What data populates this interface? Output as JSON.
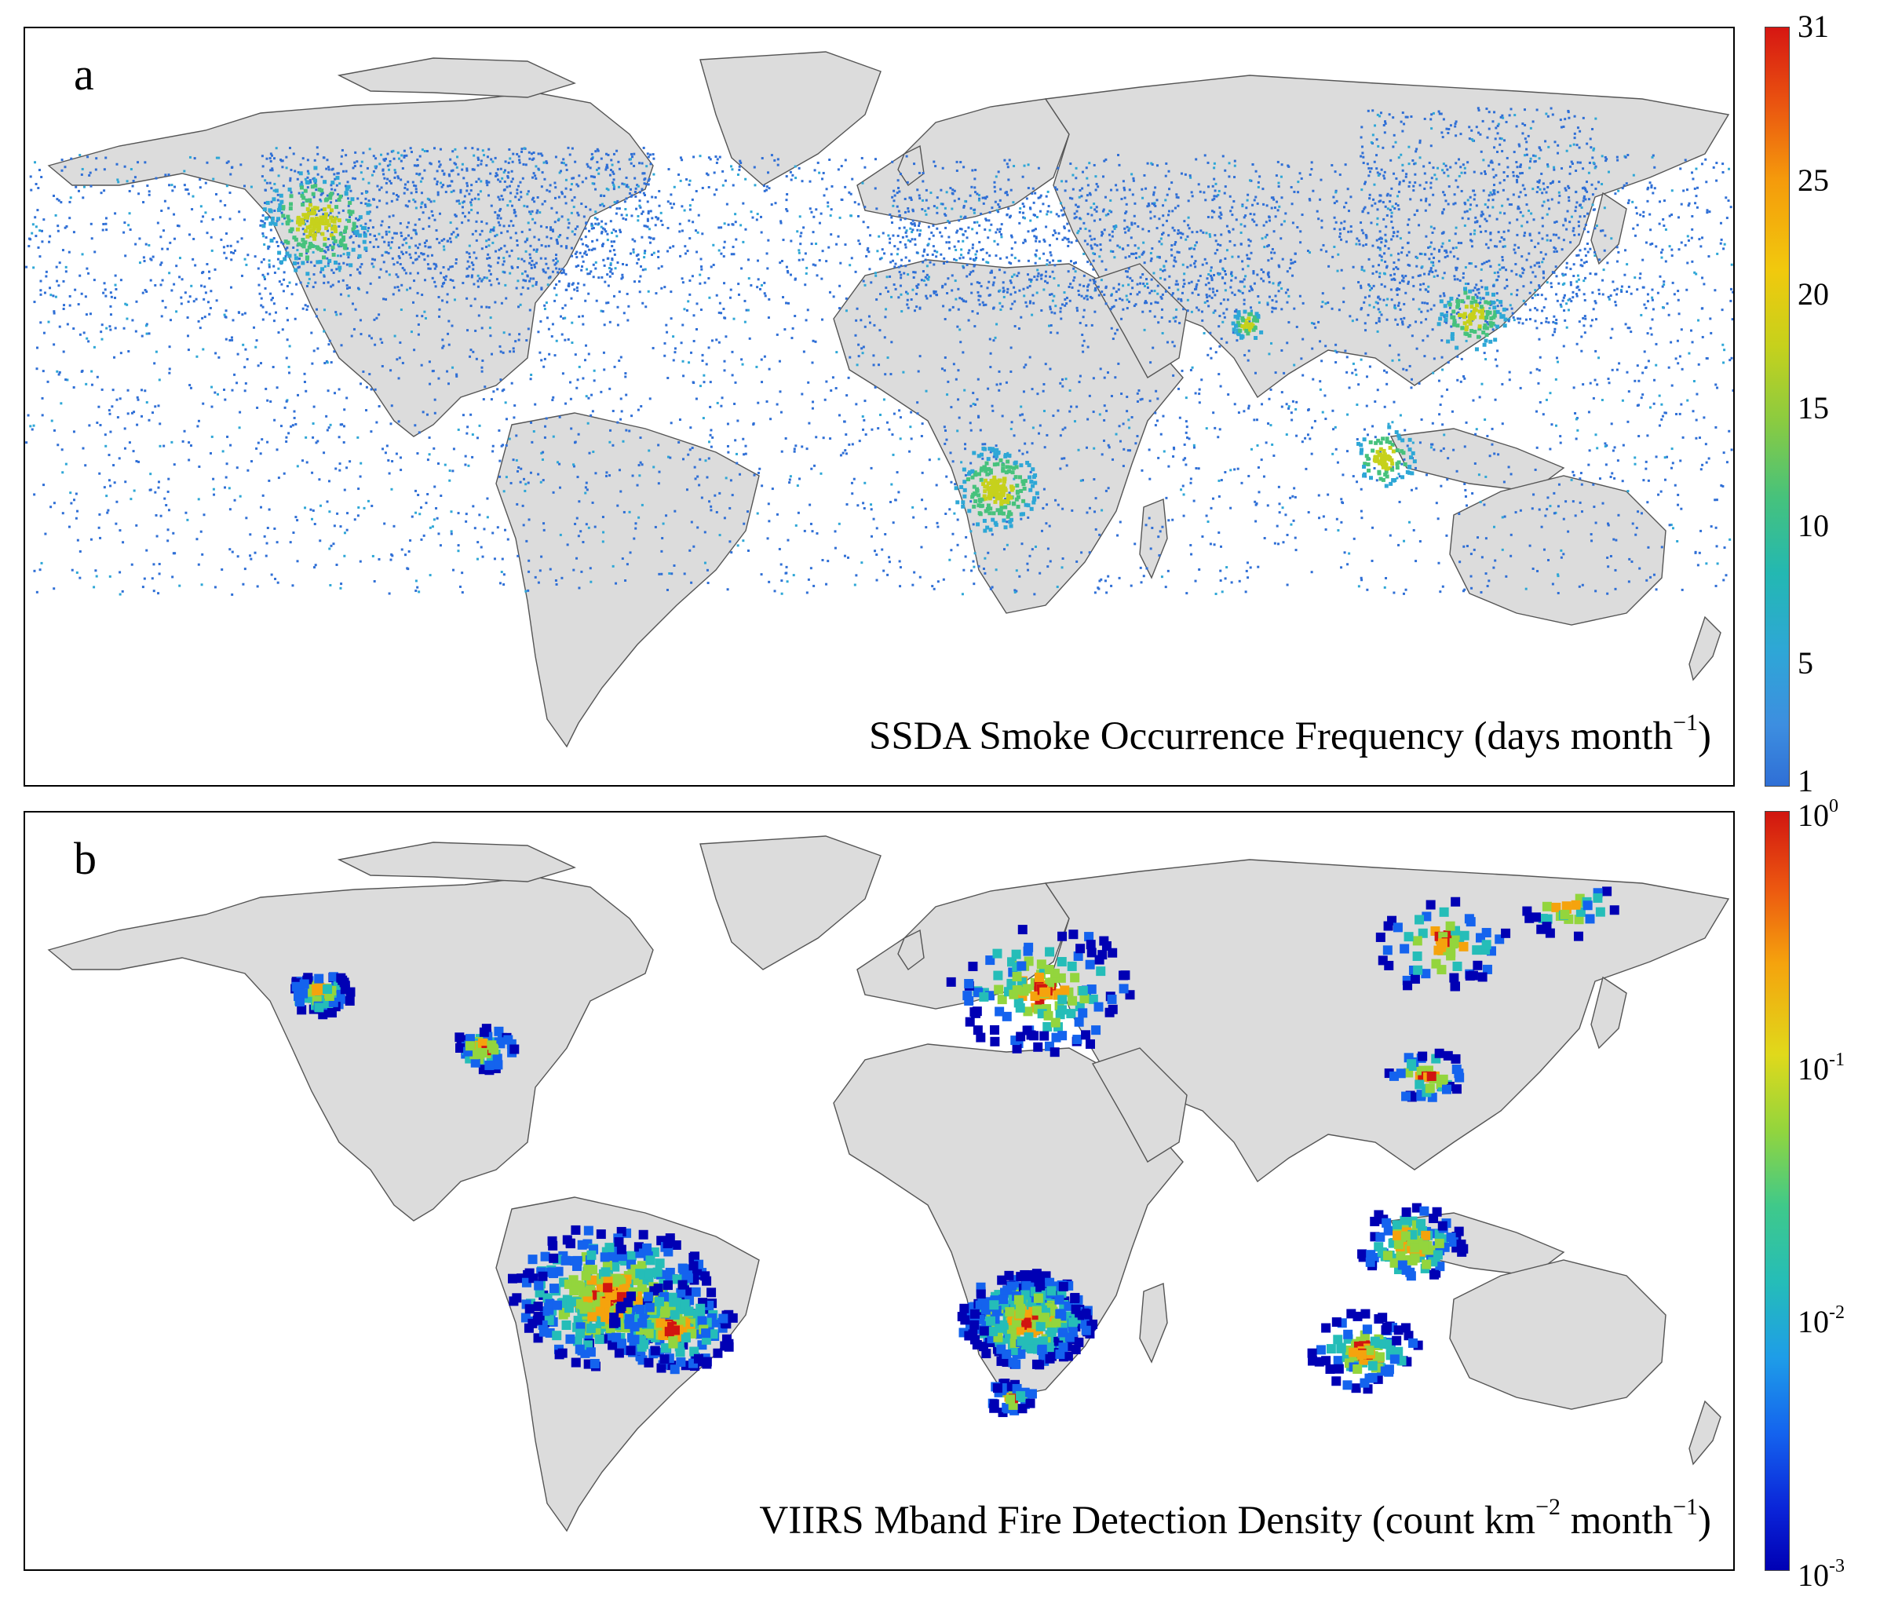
{
  "panels": {
    "a": {
      "letter": "a",
      "caption_main": "SSDA Smoke Occurrence Frequency (days month",
      "caption_sup": "−1",
      "caption_close": ")",
      "colorbar": {
        "ticks": [
          "31",
          "25",
          "20",
          "15",
          "10",
          "5",
          "1"
        ],
        "range": [
          1,
          31
        ],
        "scale": "linear",
        "colors": [
          "#2f6fd6",
          "#2ea7d6",
          "#46c27c",
          "#c6d11c",
          "#f59a0c",
          "#d61612"
        ]
      }
    },
    "b": {
      "letter": "b",
      "caption_main": "VIIRS Mband Fire Detection Density (count km",
      "caption_sup1": "−2",
      "caption_mid": " month",
      "caption_sup2": "−1",
      "caption_close": ")",
      "colorbar": {
        "ticks": [
          {
            "base": "10",
            "exp": "0"
          },
          {
            "base": "10",
            "exp": "-1"
          },
          {
            "base": "10",
            "exp": "-2"
          },
          {
            "base": "10",
            "exp": "-3"
          }
        ],
        "range": [
          0.001,
          1
        ],
        "scale": "log",
        "colors": [
          "#0000b4",
          "#1463ee",
          "#25bdb8",
          "#93d53d",
          "#f5a30d",
          "#d11510"
        ]
      }
    }
  },
  "colors": {
    "land": "#dcdcdc",
    "coast": "#555555",
    "ocean": "#ffffff"
  }
}
